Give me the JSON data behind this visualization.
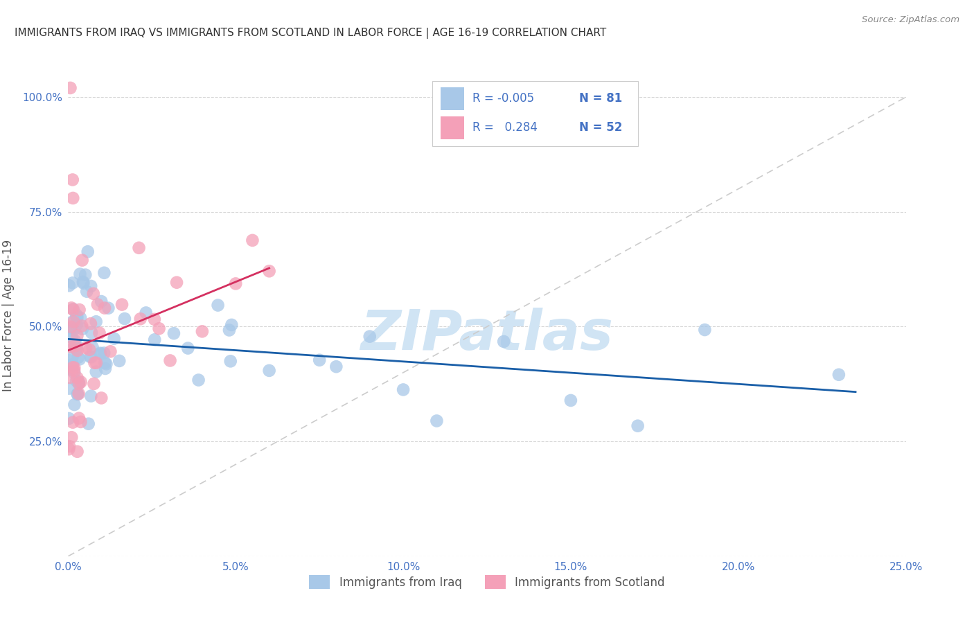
{
  "title": "IMMIGRANTS FROM IRAQ VS IMMIGRANTS FROM SCOTLAND IN LABOR FORCE | AGE 16-19 CORRELATION CHART",
  "source": "Source: ZipAtlas.com",
  "ylabel": "In Labor Force | Age 16-19",
  "legend_iraq_r": "-0.005",
  "legend_iraq_n": "81",
  "legend_scotland_r": "0.284",
  "legend_scotland_n": "52",
  "iraq_color": "#a8c8e8",
  "scotland_color": "#f4a0b8",
  "iraq_line_color": "#1a5fa8",
  "scotland_line_color": "#d43060",
  "ref_line_color": "#cccccc",
  "watermark_color": "#d0e4f4",
  "background_color": "#ffffff",
  "grid_color": "#cccccc",
  "tick_color": "#4472c4",
  "title_color": "#333333",
  "source_color": "#888888",
  "label_color": "#555555",
  "legend_text_color": "#4472c4"
}
